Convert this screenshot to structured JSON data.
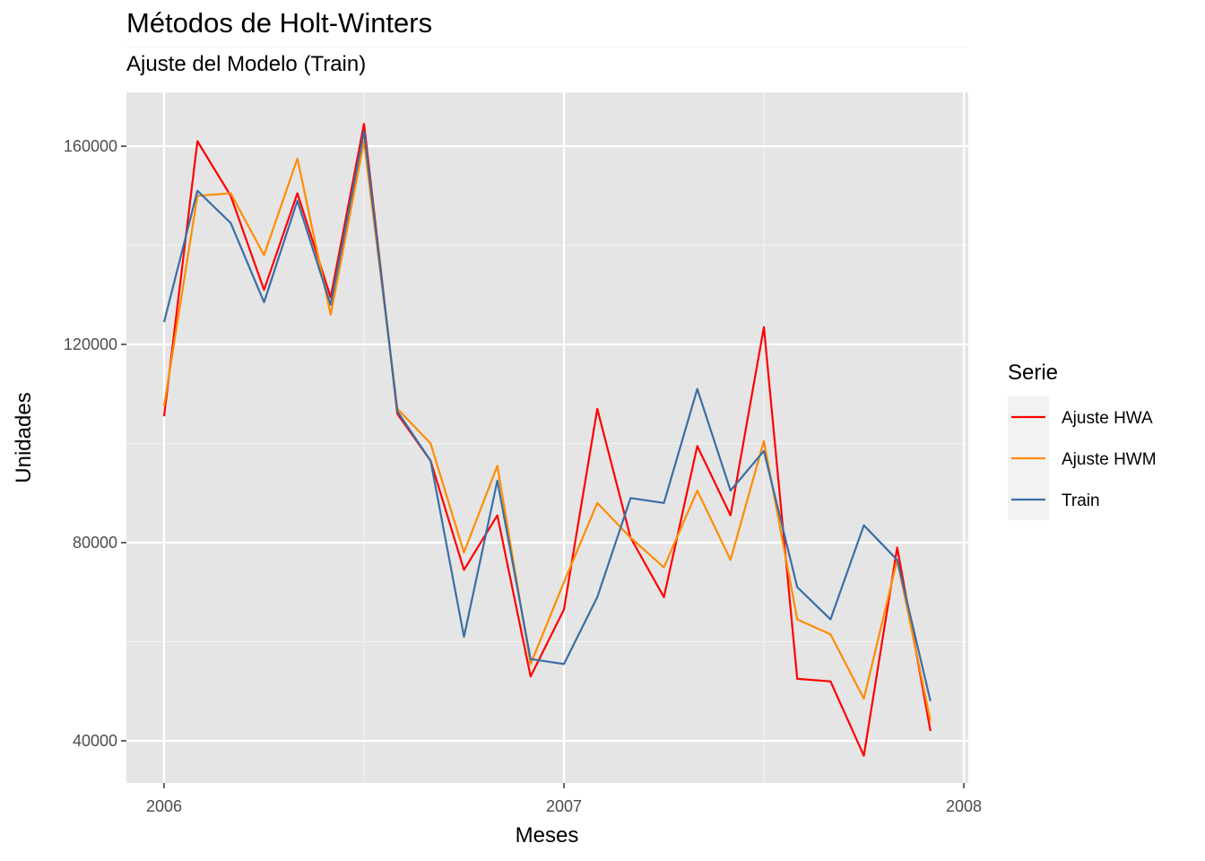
{
  "chart_data": {
    "type": "line",
    "title": "Métodos de Holt-Winters",
    "subtitle": "Ajuste del Modelo (Train)",
    "xlabel": "Meses",
    "ylabel": "Unidades",
    "xlim": [
      2005.9,
      2008.0
    ],
    "ylim": [
      33000,
      170000
    ],
    "x_ticks": [
      2006,
      2007,
      2008
    ],
    "x_tick_labels": [
      "2006",
      "2007",
      "2008"
    ],
    "y_ticks": [
      40000,
      80000,
      120000,
      160000
    ],
    "y_tick_labels": [
      "40000",
      "80000",
      "120000",
      "160000"
    ],
    "grid": true,
    "legend_title": "Serie",
    "legend_position": "right",
    "x": [
      2006.0,
      2006.0833,
      2006.1667,
      2006.25,
      2006.3333,
      2006.4167,
      2006.5,
      2006.5833,
      2006.6667,
      2006.75,
      2006.8333,
      2006.9167,
      2007.0,
      2007.0833,
      2007.1667,
      2007.25,
      2007.3333,
      2007.4167,
      2007.5,
      2007.5833,
      2007.6667,
      2007.75,
      2007.8333,
      2007.9167
    ],
    "series": [
      {
        "name": "Ajuste HWA",
        "color": "#ff0000",
        "values": [
          105500,
          161000,
          150000,
          131000,
          150500,
          129500,
          164500,
          106000,
          96500,
          74500,
          85500,
          53000,
          66500,
          107000,
          81000,
          69000,
          99500,
          85500,
          123500,
          52500,
          52000,
          37000,
          79000,
          42000
        ]
      },
      {
        "name": "Ajuste HWM",
        "color": "#ff8c00",
        "values": [
          107500,
          150000,
          150500,
          138000,
          157500,
          126000,
          161000,
          107000,
          100000,
          78000,
          95500,
          55500,
          72000,
          88000,
          81000,
          75000,
          90500,
          76500,
          100500,
          64500,
          61500,
          48500,
          76500,
          44000
        ]
      },
      {
        "name": "Train",
        "color": "#3a6ea5",
        "values": [
          124500,
          151000,
          144500,
          128500,
          149000,
          128000,
          163000,
          106500,
          96500,
          61000,
          92500,
          56500,
          55500,
          69000,
          89000,
          88000,
          111000,
          90500,
          98500,
          71000,
          64500,
          83500,
          76500,
          48000
        ]
      }
    ]
  }
}
